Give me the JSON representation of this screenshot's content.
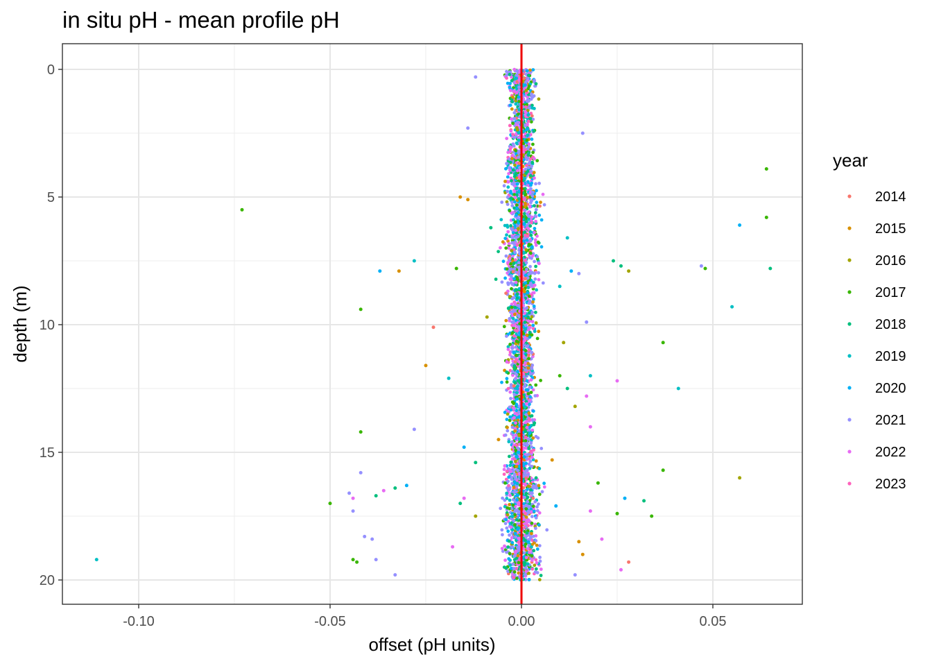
{
  "chart_data": {
    "type": "scatter",
    "title": "in situ pH - mean profile pH",
    "xlabel": "offset (pH units)",
    "ylabel": "depth (m)",
    "xlim": [
      -0.12,
      0.073
    ],
    "ylim": [
      -1,
      21
    ],
    "y_reversed": true,
    "grid": true,
    "x_ticks": [
      -0.1,
      -0.05,
      0.0,
      0.05
    ],
    "x_tick_labels": [
      "-0.10",
      "-0.05",
      "0.00",
      "0.05"
    ],
    "y_ticks": [
      0,
      5,
      10,
      15,
      20
    ],
    "y_tick_labels": [
      "0",
      "5",
      "10",
      "15",
      "20"
    ],
    "reference_line": {
      "x": 0,
      "color": "#ee0000"
    },
    "legend": {
      "title": "year",
      "placement": "right",
      "entries": [
        {
          "label": "2014",
          "color": "#F8766D"
        },
        {
          "label": "2015",
          "color": "#D89000"
        },
        {
          "label": "2016",
          "color": "#A3A500"
        },
        {
          "label": "2017",
          "color": "#39B600"
        },
        {
          "label": "2018",
          "color": "#00BF7D"
        },
        {
          "label": "2019",
          "color": "#00BFC4"
        },
        {
          "label": "2020",
          "color": "#00B0F6"
        },
        {
          "label": "2021",
          "color": "#9590FF"
        },
        {
          "label": "2022",
          "color": "#E76BF3"
        },
        {
          "label": "2023",
          "color": "#FF62BC"
        }
      ]
    },
    "series": [
      {
        "name": "2014",
        "points": [
          [
            -0.023,
            10.1
          ],
          [
            0.028,
            19.3
          ],
          [
            0.001,
            8.2
          ],
          [
            -0.002,
            12.4
          ],
          [
            0.003,
            16.8
          ],
          [
            0.0,
            3.5
          ]
        ]
      },
      {
        "name": "2015",
        "points": [
          [
            -0.016,
            5.0
          ],
          [
            -0.014,
            5.1
          ],
          [
            -0.032,
            7.9
          ],
          [
            -0.025,
            11.6
          ],
          [
            0.015,
            18.5
          ],
          [
            0.008,
            15.3
          ],
          [
            0.016,
            19.0
          ],
          [
            -0.006,
            14.5
          ]
        ]
      },
      {
        "name": "2016",
        "points": [
          [
            0.057,
            16.0
          ],
          [
            0.028,
            7.9
          ],
          [
            0.014,
            13.2
          ],
          [
            -0.009,
            9.7
          ],
          [
            0.011,
            10.7
          ],
          [
            -0.012,
            17.5
          ]
        ]
      },
      {
        "name": "2017",
        "points": [
          [
            -0.073,
            5.5
          ],
          [
            -0.05,
            17.0
          ],
          [
            -0.042,
            9.4
          ],
          [
            -0.042,
            14.2
          ],
          [
            -0.044,
            19.2
          ],
          [
            -0.043,
            19.3
          ],
          [
            0.064,
            3.9
          ],
          [
            0.064,
            5.8
          ],
          [
            0.048,
            7.8
          ],
          [
            0.037,
            10.7
          ],
          [
            0.037,
            15.7
          ],
          [
            0.034,
            17.5
          ],
          [
            0.025,
            17.4
          ],
          [
            0.02,
            16.2
          ],
          [
            -0.017,
            7.8
          ],
          [
            0.01,
            12.0
          ]
        ]
      },
      {
        "name": "2018",
        "points": [
          [
            0.065,
            7.8
          ],
          [
            0.032,
            16.9
          ],
          [
            0.026,
            7.7
          ],
          [
            0.024,
            7.5
          ],
          [
            -0.038,
            16.7
          ],
          [
            -0.033,
            16.4
          ],
          [
            -0.016,
            17.0
          ],
          [
            -0.012,
            15.4
          ],
          [
            0.012,
            12.5
          ],
          [
            -0.008,
            6.2
          ]
        ]
      },
      {
        "name": "2019",
        "points": [
          [
            -0.111,
            19.2
          ],
          [
            -0.028,
            7.5
          ],
          [
            0.041,
            12.5
          ],
          [
            0.055,
            9.3
          ],
          [
            0.012,
            6.6
          ],
          [
            -0.019,
            12.1
          ],
          [
            0.018,
            12.0
          ],
          [
            0.01,
            8.5
          ]
        ]
      },
      {
        "name": "2020",
        "points": [
          [
            0.057,
            6.1
          ],
          [
            0.027,
            16.8
          ],
          [
            -0.037,
            7.9
          ],
          [
            -0.03,
            16.3
          ],
          [
            0.013,
            7.9
          ],
          [
            -0.015,
            14.8
          ],
          [
            0.009,
            17.1
          ]
        ]
      },
      {
        "name": "2021",
        "points": [
          [
            0.047,
            7.7
          ],
          [
            0.016,
            2.5
          ],
          [
            -0.042,
            15.8
          ],
          [
            -0.041,
            18.3
          ],
          [
            -0.039,
            18.4
          ],
          [
            -0.038,
            19.2
          ],
          [
            -0.033,
            19.8
          ],
          [
            -0.028,
            14.1
          ],
          [
            -0.045,
            16.6
          ],
          [
            -0.044,
            17.3
          ],
          [
            0.017,
            9.9
          ],
          [
            0.015,
            8.0
          ],
          [
            -0.014,
            2.3
          ],
          [
            -0.012,
            0.3
          ],
          [
            0.014,
            19.8
          ]
        ]
      },
      {
        "name": "2022",
        "points": [
          [
            0.025,
            12.2
          ],
          [
            0.026,
            19.6
          ],
          [
            -0.044,
            16.8
          ],
          [
            -0.036,
            16.5
          ],
          [
            0.018,
            14.0
          ],
          [
            0.018,
            17.3
          ],
          [
            0.021,
            18.4
          ],
          [
            -0.018,
            18.7
          ],
          [
            -0.015,
            16.8
          ],
          [
            0.017,
            12.8
          ]
        ]
      },
      {
        "name": "2023",
        "points": [
          [
            0.0,
            1.5
          ],
          [
            -0.003,
            2.2
          ],
          [
            0.002,
            11.0
          ],
          [
            0.001,
            17.4
          ],
          [
            -0.002,
            19.9
          ],
          [
            0.001,
            6.5
          ]
        ]
      }
    ]
  }
}
